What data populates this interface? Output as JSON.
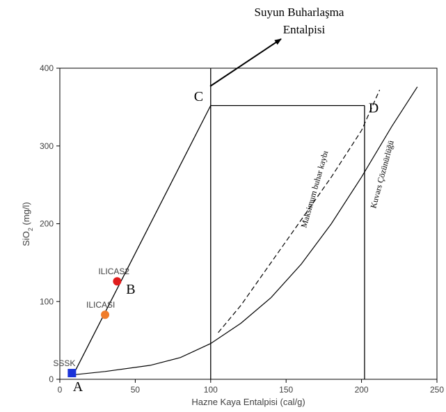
{
  "chart_data": {
    "type": "line",
    "xlabel": "Hazne Kaya Entalpisi (cal/g)",
    "ylabel_main": "SiO",
    "ylabel_sub": "2",
    "ylabel_unit": " (mg/l)",
    "xlim": [
      0,
      250
    ],
    "ylim": [
      0,
      400
    ],
    "xticks": [
      0,
      50,
      100,
      150,
      200,
      250
    ],
    "yticks": [
      0,
      100,
      200,
      300,
      400
    ],
    "grid": false,
    "series": [
      {
        "name": "Kuvars Çözünürlüğü",
        "style": "solid",
        "x": [
          10,
          30,
          60,
          80,
          100,
          120,
          140,
          160,
          180,
          200,
          220,
          237
        ],
        "y": [
          6,
          10,
          18,
          28,
          46,
          72,
          105,
          148,
          200,
          260,
          325,
          376
        ]
      },
      {
        "name": "Maksimum buhar kaybı",
        "style": "dashed",
        "x": [
          105,
          120,
          140,
          160,
          180,
          200,
          212
        ],
        "y": [
          60,
          95,
          150,
          205,
          260,
          320,
          372
        ]
      }
    ],
    "lines": [
      {
        "x": [
          10,
          100
        ],
        "y": [
          10,
          352
        ]
      },
      {
        "x": [
          100,
          202
        ],
        "y": [
          352,
          352
        ]
      },
      {
        "x": [
          100,
          100
        ],
        "y": [
          0,
          400
        ]
      },
      {
        "x": [
          202,
          202
        ],
        "y": [
          0,
          352
        ]
      }
    ],
    "points": [
      {
        "label": "SSSK",
        "x": 8,
        "y": 8,
        "color": "#1a33d9",
        "shape": "square"
      },
      {
        "label": "ILICASI",
        "x": 30,
        "y": 83,
        "color": "#f07c2a",
        "shape": "circle"
      },
      {
        "label": "ILICAS2",
        "x": 38,
        "y": 126,
        "color": "#e01c1c",
        "shape": "circle"
      }
    ],
    "point_letters": [
      {
        "letter": "A",
        "x": 12,
        "y": -15
      },
      {
        "letter": "B",
        "x": 47,
        "y": 110
      },
      {
        "letter": "C",
        "x": 92,
        "y": 358
      },
      {
        "letter": "D",
        "x": 208,
        "y": 343
      }
    ],
    "annotation": {
      "line1": "Suyun Buharlaşma",
      "line2": "Entalpisi"
    },
    "curve_labels": {
      "solid": "Kuvars Çözünürlüğü",
      "dashed": "Maksimum buhar kaybı"
    }
  }
}
